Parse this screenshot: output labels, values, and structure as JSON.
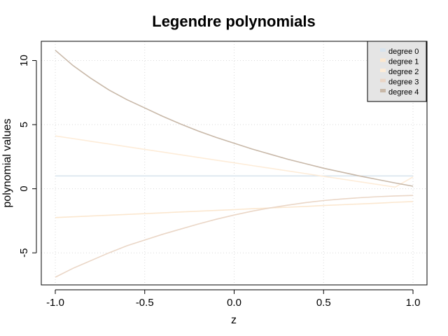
{
  "chart_data": {
    "type": "line",
    "title": "Legendre polynomials",
    "xlabel": "z",
    "ylabel": "polynomial values",
    "xlim": [
      -1.0,
      1.0
    ],
    "ylim": [
      -7.5,
      11.5
    ],
    "xticks": [
      "-1.0",
      "-0.5",
      "0.0",
      "0.5",
      "1.0"
    ],
    "xtick_values": [
      -1.0,
      -0.5,
      0.0,
      0.5,
      1.0
    ],
    "yticks": [
      "-5",
      "0",
      "5",
      "10"
    ],
    "ytick_values": [
      -5,
      0,
      5,
      10
    ],
    "grid": true,
    "legend_position": "top-right",
    "legend_background": "#e5e5e5",
    "x": [
      -1.0,
      -0.9,
      -0.8,
      -0.7,
      -0.6,
      -0.5,
      -0.4,
      -0.3,
      -0.2,
      -0.1,
      0.0,
      0.1,
      0.2,
      0.3,
      0.4,
      0.5,
      0.6,
      0.7,
      0.8,
      0.9,
      1.0
    ],
    "series": [
      {
        "name": "degree 0",
        "color": "#d8e4ee",
        "values": [
          1.0,
          1.0,
          1.0,
          1.0,
          1.0,
          1.0,
          1.0,
          1.0,
          1.0,
          1.0,
          1.0,
          1.0,
          1.0,
          1.0,
          1.0,
          1.0,
          1.0,
          1.0,
          1.0,
          1.0,
          1.0
        ]
      },
      {
        "name": "degree 1",
        "color": "#fbe7cf",
        "values": [
          -2.25,
          -2.19,
          -2.13,
          -2.06,
          -2.0,
          -1.94,
          -1.88,
          -1.81,
          -1.75,
          -1.69,
          -1.63,
          -1.56,
          -1.5,
          -1.44,
          -1.38,
          -1.31,
          -1.25,
          -1.19,
          -1.13,
          -1.06,
          -1.0
        ]
      },
      {
        "name": "degree 2",
        "color": "#fdecd8",
        "values": [
          4.12,
          3.91,
          3.7,
          3.49,
          3.28,
          3.07,
          2.86,
          2.65,
          2.44,
          2.23,
          2.02,
          1.81,
          1.6,
          1.39,
          1.18,
          0.97,
          0.76,
          0.55,
          0.34,
          0.13,
          0.92
        ]
      },
      {
        "name": "degree 3",
        "color": "#ead6c6",
        "values": [
          -6.9,
          -6.2,
          -5.6,
          -5.0,
          -4.45,
          -4.0,
          -3.55,
          -3.15,
          -2.75,
          -2.38,
          -2.05,
          -1.75,
          -1.5,
          -1.28,
          -1.08,
          -0.92,
          -0.8,
          -0.7,
          -0.62,
          -0.56,
          -0.52
        ]
      },
      {
        "name": "degree 4",
        "color": "#c8b8a8",
        "values": [
          10.8,
          9.6,
          8.6,
          7.7,
          6.95,
          6.3,
          5.65,
          5.05,
          4.5,
          4.0,
          3.55,
          3.1,
          2.7,
          2.3,
          1.95,
          1.6,
          1.3,
          1.0,
          0.72,
          0.45,
          0.2
        ]
      }
    ]
  }
}
